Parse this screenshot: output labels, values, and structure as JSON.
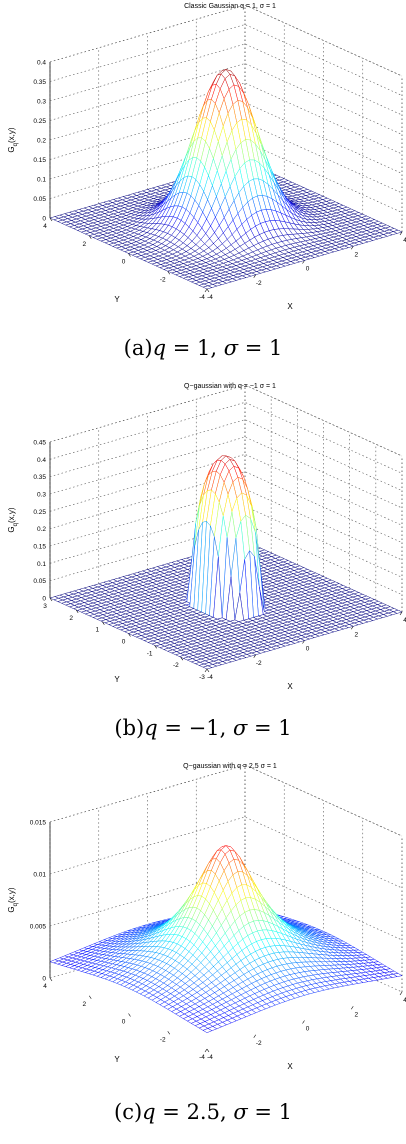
{
  "chart_data": [
    {
      "type": "surface",
      "title": "Classic Gaussian q = 1, σ = 1",
      "xlabel": "X",
      "ylabel": "Y",
      "zlabel_main": "G",
      "zlabel_sub": "q",
      "zlabel_tail": "(x,y)",
      "x_ticks": [
        "-4",
        "-2",
        "0",
        "2",
        "4"
      ],
      "y_ticks": [
        "4",
        "2",
        "0",
        "-2",
        "-4"
      ],
      "z_ticks": [
        "0",
        "0.05",
        "0.1",
        "0.15",
        "0.2",
        "0.25",
        "0.3",
        "0.35",
        "0.4"
      ],
      "xlim": [
        -4,
        4
      ],
      "ylim": [
        -4,
        4
      ],
      "zlim": [
        0,
        0.4
      ],
      "q": 1,
      "sigma": 1,
      "peak": 0.3989,
      "grid": true,
      "caption": {
        "label": "(a)",
        "q_text": "q",
        "q_eq": " = 1, ",
        "s_text": "σ",
        "s_eq": " = 1"
      }
    },
    {
      "type": "surface",
      "title": "Q−gaussian with q = −1 σ = 1",
      "xlabel": "X",
      "ylabel": "Y",
      "zlabel_main": "G",
      "zlabel_sub": "q",
      "zlabel_tail": "(x,y)",
      "x_ticks": [
        "-4",
        "-2",
        "0",
        "2",
        "4"
      ],
      "y_ticks": [
        "3",
        "2",
        "1",
        "0",
        "-1",
        "-2",
        "-3"
      ],
      "z_ticks": [
        "0",
        "0.05",
        "0.1",
        "0.15",
        "0.2",
        "0.25",
        "0.3",
        "0.35",
        "0.4",
        "0.45"
      ],
      "xlim": [
        -4,
        4
      ],
      "ylim": [
        -3,
        3
      ],
      "zlim": [
        0,
        0.45
      ],
      "q": -1,
      "sigma": 1,
      "peak": 0.43,
      "grid": true,
      "caption": {
        "label": "(b)",
        "q_text": "q",
        "q_eq": " = −1, ",
        "s_text": "σ",
        "s_eq": " = 1"
      }
    },
    {
      "type": "surface",
      "title": "Q−gaussian with q = 2.5 σ = 1",
      "xlabel": "X",
      "ylabel": "Y",
      "zlabel_main": "G",
      "zlabel_sub": "q",
      "zlabel_tail": "(x,y)",
      "x_ticks": [
        "-4",
        "-2",
        "0",
        "2",
        "4"
      ],
      "y_ticks": [
        "4",
        "2",
        "0",
        "-2",
        "-4"
      ],
      "z_ticks": [
        "0",
        "0.005",
        "0.01",
        "0.015"
      ],
      "xlim": [
        -4,
        4
      ],
      "ylim": [
        -4,
        4
      ],
      "zlim": [
        0,
        0.015
      ],
      "q": 2.5,
      "sigma": 1,
      "peak": 0.0134,
      "grid": true,
      "caption": {
        "label": "(c)",
        "q_text": "q",
        "q_eq": " = 2.5, ",
        "s_text": "σ",
        "s_eq": " = 1"
      }
    }
  ]
}
